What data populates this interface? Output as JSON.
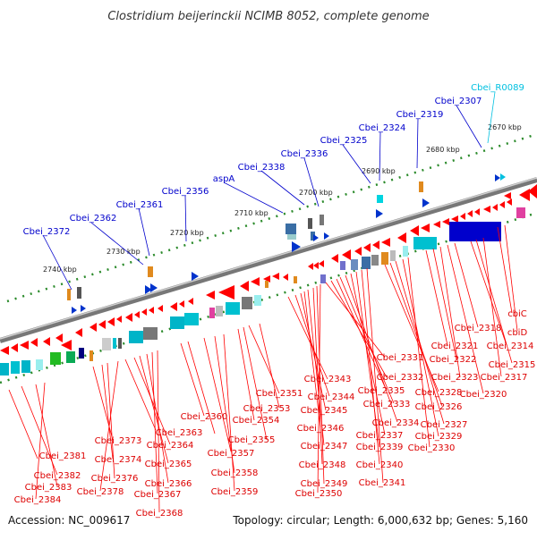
{
  "title": "Clostridium beijerinckii NCIMB 8052, complete genome",
  "footer": {
    "accession": "Accession: NC_009617",
    "topology": "Topology: circular; Length: 6,000,632 bp; Genes: 5,160"
  },
  "ticks": [
    "2670 kbp",
    "2680 kbp",
    "2690 kbp",
    "2700 kbp",
    "2710 kbp",
    "2720 kbp",
    "2730 kbp",
    "2740 kbp"
  ],
  "colors": {
    "forward_gene_label": "#0000cc",
    "rna_label": "#00c0e0",
    "reverse_gene_label": "#dd0000",
    "backbone": "#777777",
    "tick_dots": "#2a8a2a"
  },
  "upper_labels": [
    "Cbei_2372",
    "Cbei_2362",
    "Cbei_2361",
    "Cbei_2356",
    "aspA",
    "Cbei_2338",
    "Cbei_2336",
    "Cbei_2325",
    "Cbei_2324",
    "Cbei_2319",
    "Cbei_2307",
    "Cbei_R0089"
  ],
  "lower_labels": [
    "cbiC",
    "cbiD",
    "Cbei_2318",
    "Cbei_2314",
    "Cbei_2315",
    "Cbei_2321",
    "Cbei_2317",
    "Cbei_2322",
    "Cbei_2331",
    "Cbei_2320",
    "Cbei_2323",
    "Cbei_2332",
    "Cbei_2343",
    "Cbei_2328",
    "Cbei_2335",
    "Cbei_2344",
    "Cbei_2351",
    "Cbei_2326",
    "Cbei_2333",
    "Cbei_2345",
    "Cbei_2353",
    "Cbei_2360",
    "Cbei_2327",
    "Cbei_2334",
    "Cbei_2346",
    "Cbei_2354",
    "Cbei_2363",
    "Cbei_2329",
    "Cbei_2337",
    "Cbei_2347",
    "Cbei_2355",
    "Cbei_2364",
    "Cbei_2373",
    "Cbei_2330",
    "Cbei_2339",
    "Cbei_2357",
    "Cbei_2374",
    "Cbei_2381",
    "Cbei_2340",
    "Cbei_2348",
    "Cbei_2358",
    "Cbei_2365",
    "Cbei_2382",
    "Cbei_2376",
    "Cbei_2341",
    "Cbei_2349",
    "Cbei_2366",
    "Cbei_2383",
    "Cbei_2350",
    "Cbei_2359",
    "Cbei_2378",
    "Cbei_2367",
    "Cbei_2384",
    "Cbei_2368"
  ]
}
